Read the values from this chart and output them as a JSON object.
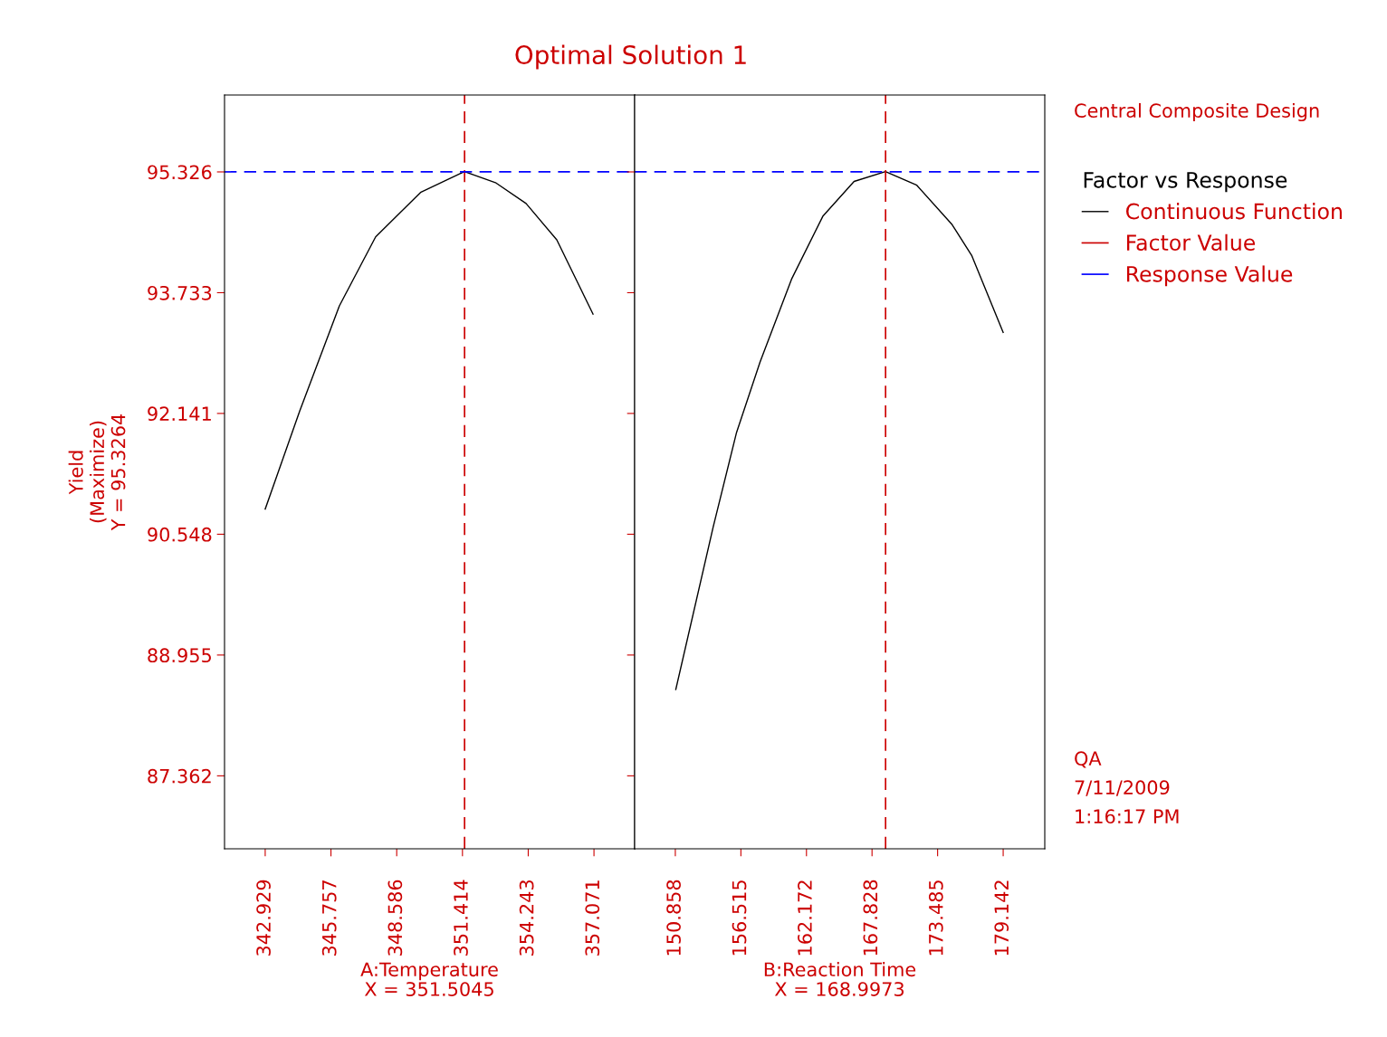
{
  "chart_data": [
    {
      "type": "line",
      "title": "Optimal Solution 1",
      "xlabel": "A:Temperature\nX = 351.5045",
      "ylabel": "Yield\n(Maximize)\nY = 95.3264",
      "legend_title": "Factor vs Response",
      "legend": "right",
      "series": [
        {
          "name": "Continuous Function",
          "color": "#000000",
          "x": [
            342.93,
            344.41,
            346.12,
            347.68,
            349.63,
            351.5,
            352.86,
            354.15,
            355.47,
            357.03
          ],
          "values": [
            90.88,
            92.17,
            93.56,
            94.47,
            95.06,
            95.33,
            95.18,
            94.91,
            94.43,
            93.45
          ]
        }
      ],
      "ref_lines": [
        {
          "axis": "x",
          "value": 351.5045,
          "label": "Factor Value",
          "color": "#cc0000",
          "line_style": "dashed"
        },
        {
          "axis": "y",
          "value": 95.3264,
          "label": "Response Value",
          "color": "#0000ff",
          "line_style": "dashed"
        }
      ],
      "xlim": [
        341.18,
        358.82
      ],
      "xticks": [
        342.929,
        345.757,
        348.586,
        351.414,
        354.243,
        357.071
      ],
      "ylim": [
        86.4,
        96.34
      ],
      "yticks": [
        87.362,
        88.955,
        90.548,
        92.141,
        93.733,
        95.326
      ],
      "annotations": [
        "Central Composite Design",
        "QA",
        "7/11/2009",
        "1:16:17 PM"
      ]
    },
    {
      "type": "line",
      "xlabel": "B:Reaction Time\nX = 168.9973",
      "tick_labels": "x",
      "series": [
        {
          "color": "#000000",
          "x": [
            150.9,
            154.12,
            156.14,
            158.17,
            160.88,
            163.58,
            166.28,
            168.99,
            171.69,
            174.74,
            176.44,
            179.14
          ],
          "values": [
            88.5,
            90.64,
            91.89,
            92.82,
            93.91,
            94.74,
            95.2,
            95.33,
            95.15,
            94.63,
            94.22,
            93.21
          ]
        }
      ],
      "ref_lines": [
        {
          "axis": "x",
          "value": 168.9973,
          "color": "#cc0000",
          "line_style": "dashed"
        },
        {
          "axis": "y",
          "value": 95.3264,
          "color": "#0000ff",
          "line_style": "dashed"
        }
      ],
      "xlim": [
        147.35,
        182.73
      ],
      "xticks": [
        150.858,
        156.515,
        162.172,
        167.828,
        173.485,
        179.142
      ],
      "ylim": [
        86.4,
        96.34
      ],
      "yticks": [
        87.362,
        88.955,
        90.548,
        92.141,
        93.733,
        95.326
      ]
    }
  ]
}
